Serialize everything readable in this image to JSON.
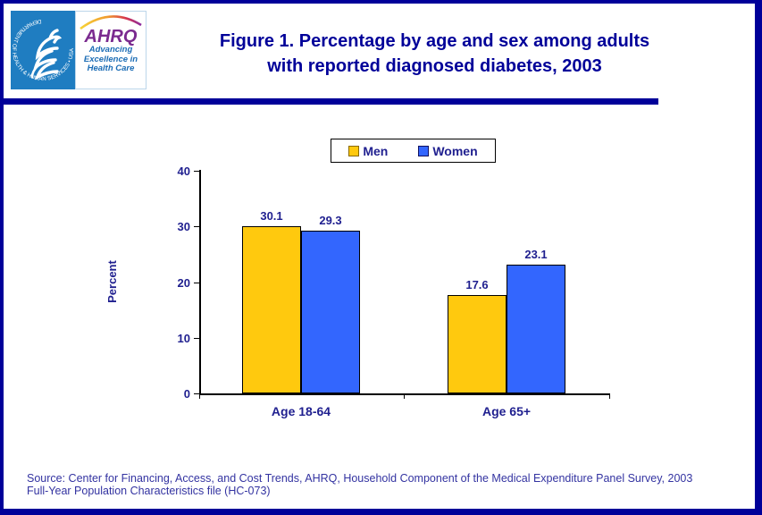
{
  "header": {
    "title_line1": "Figure 1. Percentage by age and sex among adults",
    "title_line2": "with reported diagnosed diabetes, 2003",
    "logo": {
      "hhs_seal_text": "DEPARTMENT OF HEALTH & HUMAN SERVICES • USA",
      "ahrq_acronym": "AHRQ",
      "tagline_line1": "Advancing",
      "tagline_line2": "Excellence in",
      "tagline_line3": "Health Care"
    }
  },
  "chart_data": {
    "type": "bar",
    "categories": [
      "Age 18-64",
      "Age 65+"
    ],
    "series": [
      {
        "name": "Men",
        "values": [
          30.1,
          17.6
        ],
        "color": "#FFC90E",
        "pattern": "dots"
      },
      {
        "name": "Women",
        "values": [
          29.3,
          23.1
        ],
        "color": "#3366FE",
        "pattern": "none"
      }
    ],
    "title": "Figure 1. Percentage by age and sex among adults with reported diagnosed diabetes, 2003",
    "xlabel": "",
    "ylabel": "Percent",
    "ylim": [
      0,
      40
    ],
    "yticks": [
      0,
      10,
      20,
      30,
      40
    ],
    "grid": false,
    "legend_position": "top-center",
    "data_labels": true
  },
  "footer": {
    "source_line1": "Source: Center for Financing, Access, and Cost Trends, AHRQ, Household Component of the Medical Expenditure Panel Survey, 2003",
    "source_line2": "Full-Year Population Characteristics file (HC-073)"
  },
  "colors": {
    "navy": "#000099",
    "chart_text": "#1F1F8F",
    "source_text": "#3333A1",
    "hhs_blue": "#1F7DC1",
    "ahrq_purple": "#7A2A8F",
    "tagline_blue": "#1B6CB5",
    "men_bar": "#FFC90E",
    "women_bar": "#3366FE"
  }
}
